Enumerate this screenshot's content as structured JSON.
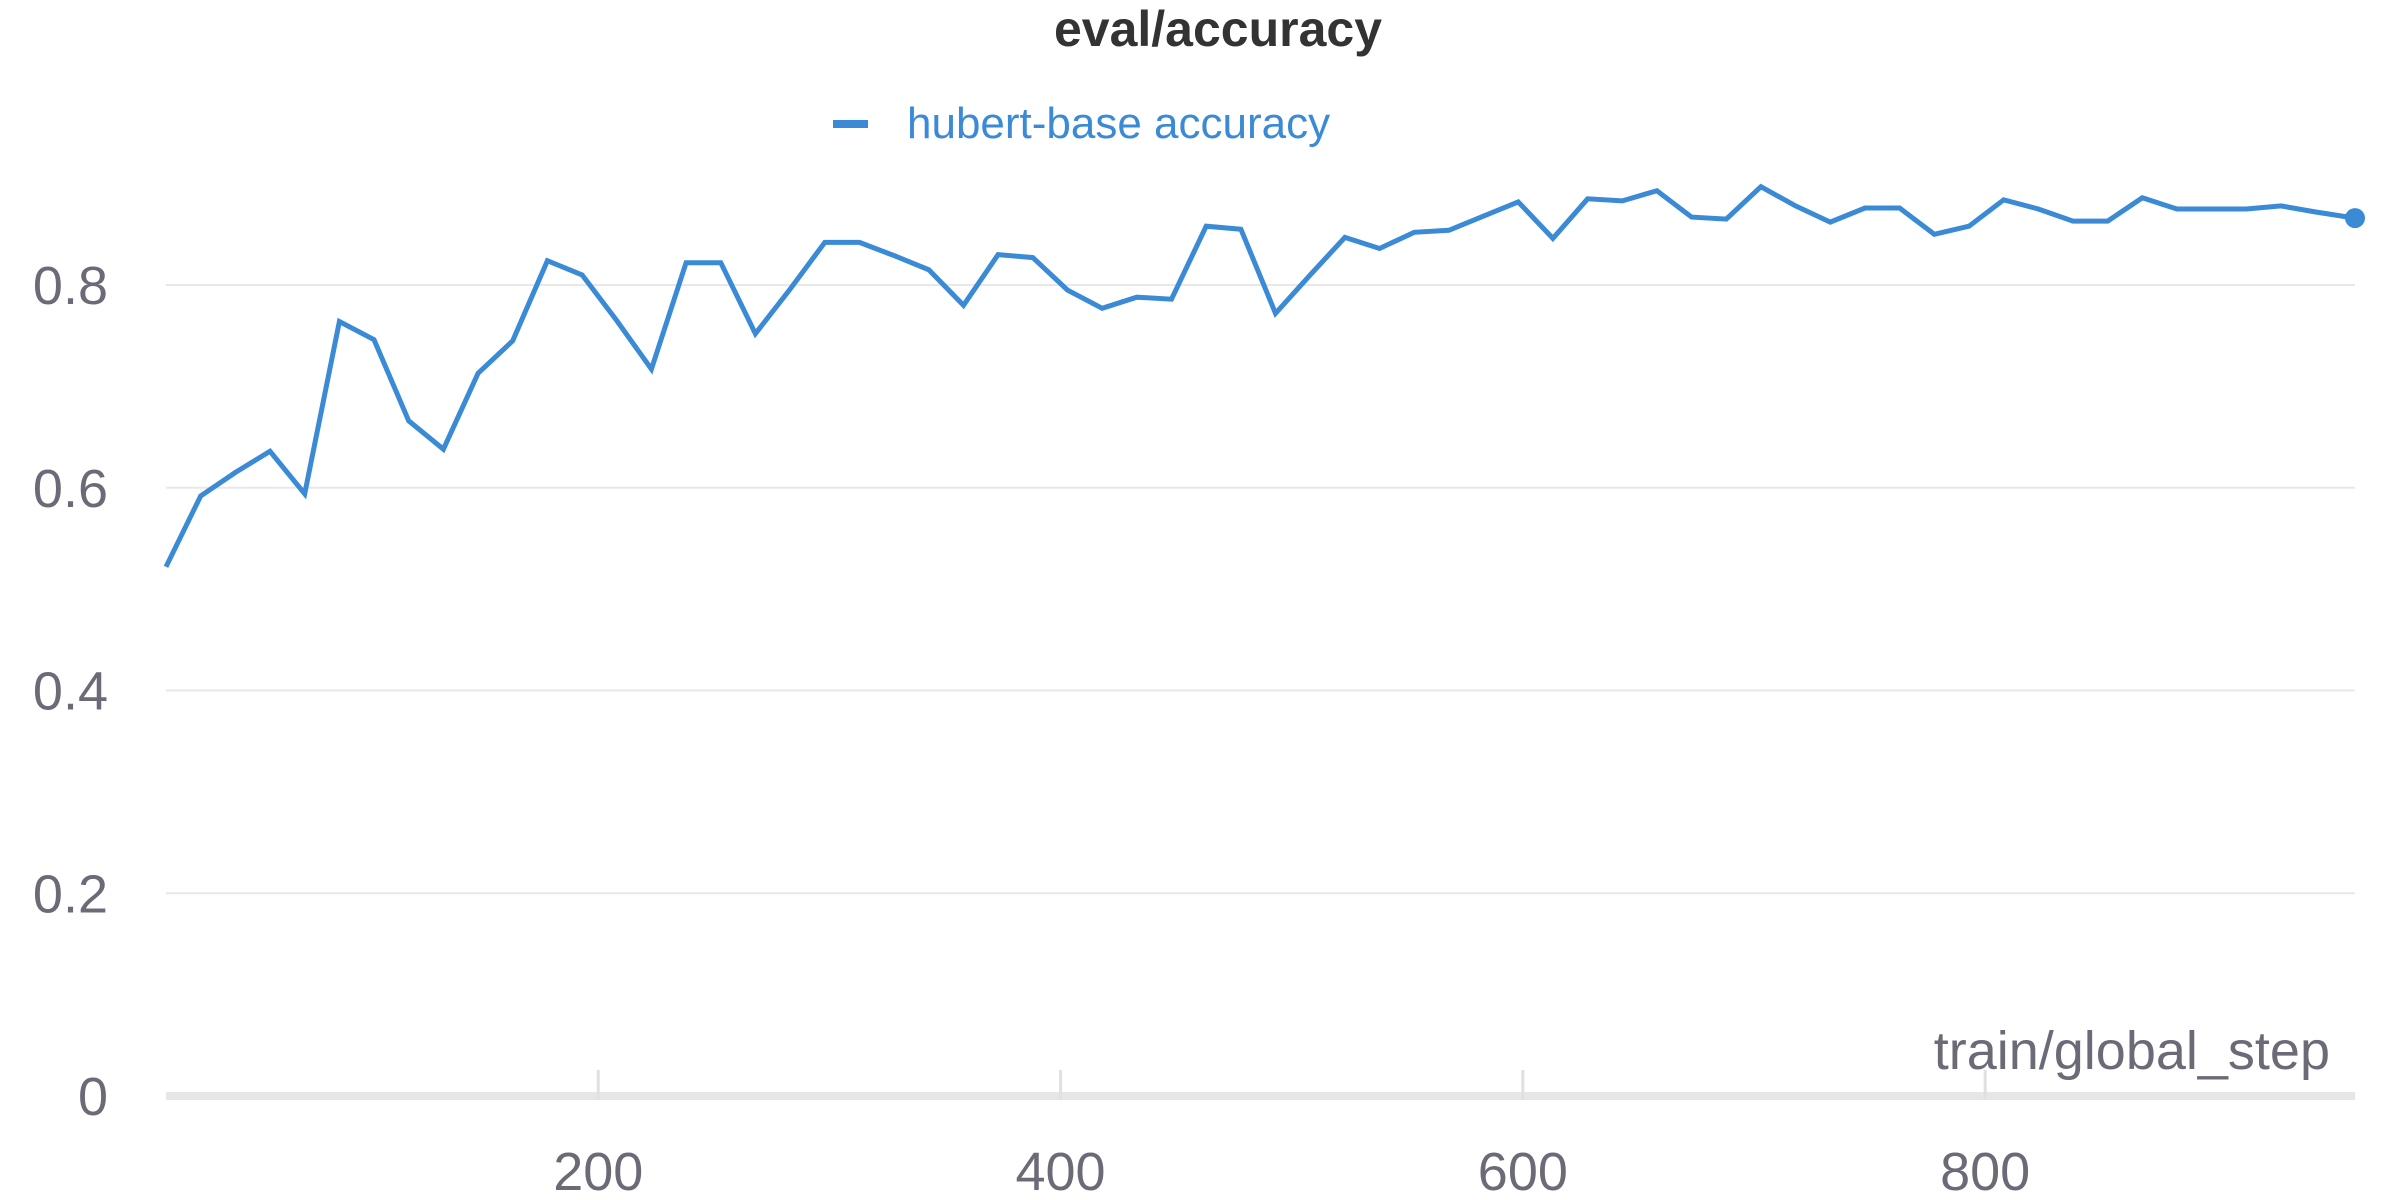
{
  "chart_data": {
    "type": "line",
    "title": "eval/accuracy",
    "xlabel": "train/global_step",
    "ylabel": "",
    "xlim": [
      13,
      960
    ],
    "ylim": [
      0,
      0.9
    ],
    "x_ticks": [
      200,
      400,
      600,
      800
    ],
    "y_ticks": [
      0,
      0.2,
      0.4,
      0.6,
      0.8
    ],
    "y_tick_labels": [
      "0",
      "0.2",
      "0.4",
      "0.6",
      "0.8"
    ],
    "grid": "horizontal",
    "legend_position": "top-center",
    "series": [
      {
        "name": "hubert-base accuracy",
        "color": "#3a8ad6",
        "x": [
          13,
          28,
          43,
          58,
          73,
          88,
          103,
          118,
          133,
          148,
          163,
          178,
          193,
          208,
          223,
          238,
          253,
          268,
          283,
          298,
          313,
          328,
          343,
          358,
          373,
          388,
          403,
          418,
          433,
          448,
          463,
          478,
          493,
          508,
          523,
          538,
          553,
          568,
          583,
          598,
          613,
          628,
          643,
          658,
          673,
          688,
          703,
          718,
          733,
          748,
          763,
          778,
          793,
          808,
          823,
          838,
          853,
          868,
          883,
          898,
          913,
          928,
          943,
          960
        ],
        "y": [
          0.522,
          0.592,
          0.615,
          0.636,
          0.594,
          0.764,
          0.746,
          0.666,
          0.638,
          0.713,
          0.745,
          0.824,
          0.81,
          0.765,
          0.717,
          0.822,
          0.822,
          0.752,
          0.796,
          0.842,
          0.842,
          0.829,
          0.815,
          0.78,
          0.83,
          0.827,
          0.795,
          0.777,
          0.788,
          0.786,
          0.858,
          0.855,
          0.772,
          0.81,
          0.847,
          0.836,
          0.852,
          0.854,
          0.868,
          0.882,
          0.846,
          0.885,
          0.883,
          0.893,
          0.867,
          0.865,
          0.897,
          0.878,
          0.862,
          0.876,
          0.876,
          0.85,
          0.858,
          0.884,
          0.875,
          0.863,
          0.863,
          0.886,
          0.875,
          0.875,
          0.875,
          0.878,
          0.872,
          0.866
        ]
      }
    ]
  }
}
